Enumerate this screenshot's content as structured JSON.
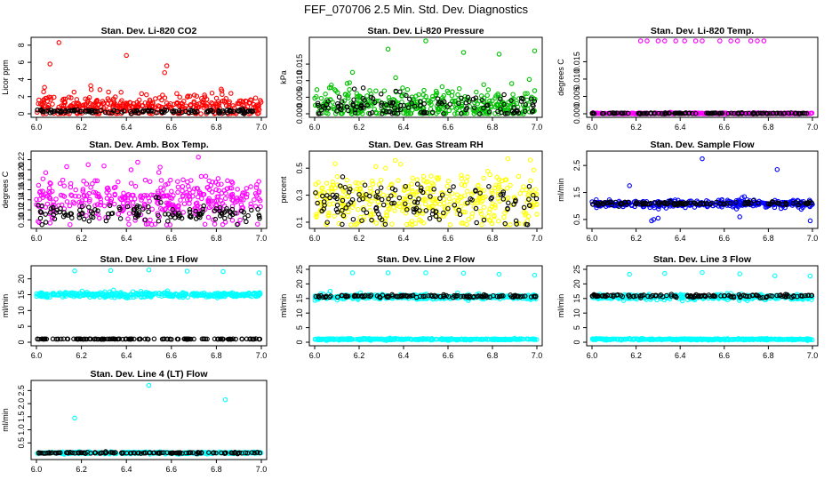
{
  "figure_title": "FEF_070706  2.5 Min. Std. Dev. Diagnostics",
  "colors": {
    "red": "#ff0000",
    "green": "#00c000",
    "magenta": "#ff00ff",
    "yellow": "#ffff00",
    "blue": "#0000ff",
    "cyan": "#00ffff",
    "black": "#000000"
  },
  "chart_data": [
    {
      "type": "scatter",
      "title": "Stan. Dev. Li-820 CO2",
      "ylabel": "Licor ppm",
      "xlim": [
        6.0,
        7.0
      ],
      "ylim": [
        0,
        8.5
      ],
      "xticks": [
        "6.0",
        "6.2",
        "6.4",
        "6.6",
        "6.8",
        "7.0"
      ],
      "yticks": [
        "0",
        "2",
        "4",
        "6",
        "8"
      ],
      "series": [
        {
          "name": "red",
          "color": "red",
          "baseline": 0.9,
          "spread": 0.9,
          "x": [
            6.1,
            6.06,
            6.4,
            6.58,
            6.57
          ],
          "y": [
            8.3,
            5.8,
            6.8,
            5.6,
            4.8
          ]
        },
        {
          "name": "black",
          "color": "black",
          "baseline": 0.3,
          "spread": 0.12,
          "x": [],
          "y": []
        }
      ]
    },
    {
      "type": "scatter",
      "title": "Stan. Dev. Li-820 Pressure",
      "ylabel": "kPa",
      "xlim": [
        6.0,
        7.0
      ],
      "ylim": [
        0,
        0.022
      ],
      "xticks": [
        "6.0",
        "6.2",
        "6.4",
        "6.6",
        "6.8",
        "7.0"
      ],
      "yticks": [
        "0.000",
        "0.005",
        "0.010",
        "0.015"
      ],
      "series": [
        {
          "name": "green",
          "color": "green",
          "baseline": 0.0025,
          "spread": 0.003,
          "x": [
            6.33,
            6.5,
            6.67,
            6.83,
            6.99,
            6.17
          ],
          "y": [
            0.0195,
            0.022,
            0.0185,
            0.018,
            0.019,
            0.0125
          ]
        },
        {
          "name": "black",
          "color": "black",
          "baseline": 0.0022,
          "spread": 0.0025,
          "x": [],
          "y": []
        }
      ]
    },
    {
      "type": "scatter",
      "title": "Stan. Dev. Li-820 Temp.",
      "ylabel": "degrees C",
      "xlim": [
        6.0,
        7.0
      ],
      "ylim": [
        0,
        0.021
      ],
      "xticks": [
        "6.0",
        "6.2",
        "6.4",
        "6.6",
        "6.8",
        "7.0"
      ],
      "yticks": [
        "0.000",
        "0.005",
        "0.010",
        "0.015"
      ],
      "series": [
        {
          "name": "magenta",
          "color": "magenta",
          "baseline": 0.0001,
          "spread": 0.0001,
          "x": [
            6.22,
            6.25,
            6.3,
            6.33,
            6.38,
            6.42,
            6.47,
            6.5,
            6.58,
            6.63,
            6.66,
            6.72,
            6.75,
            6.78
          ],
          "y": [
            0.021,
            0.021,
            0.021,
            0.021,
            0.021,
            0.021,
            0.021,
            0.021,
            0.021,
            0.021,
            0.021,
            0.021,
            0.021,
            0.021
          ]
        },
        {
          "name": "black",
          "color": "black",
          "baseline": 0.0001,
          "spread": 0.0001,
          "x": [],
          "y": []
        }
      ]
    },
    {
      "type": "scatter",
      "title": "Stan. Dev. Amb. Box Temp.",
      "ylabel": "degrees C",
      "xlim": [
        6.0,
        7.0
      ],
      "ylim": [
        0.09,
        0.23
      ],
      "xticks": [
        "6.0",
        "6.2",
        "6.4",
        "6.6",
        "6.8",
        "7.0"
      ],
      "yticks": [
        "0.10",
        "0.12",
        "0.14",
        "0.16",
        "0.18",
        "0.20",
        "0.22"
      ],
      "series": [
        {
          "name": "magenta",
          "color": "magenta",
          "baseline": 0.14,
          "spread": 0.028,
          "x": [
            6.45,
            6.72,
            6.23,
            6.55
          ],
          "y": [
            0.215,
            0.225,
            0.21,
            0.205
          ]
        },
        {
          "name": "black",
          "color": "black",
          "baseline": 0.112,
          "spread": 0.012,
          "x": [],
          "y": []
        }
      ]
    },
    {
      "type": "scatter",
      "title": "Stan. Dev. Gas Stream RH",
      "ylabel": "percent",
      "xlim": [
        6.0,
        7.0
      ],
      "ylim": [
        0.08,
        0.6
      ],
      "xticks": [
        "6.0",
        "6.2",
        "6.4",
        "6.6",
        "6.8",
        "7.0"
      ],
      "yticks": [
        "0.1",
        "0.3",
        "0.5"
      ],
      "series": [
        {
          "name": "yellow",
          "color": "yellow",
          "baseline": 0.25,
          "spread": 0.13,
          "x": [
            6.87,
            6.97
          ],
          "y": [
            0.57,
            0.56
          ]
        },
        {
          "name": "black",
          "color": "black",
          "baseline": 0.24,
          "spread": 0.1,
          "x": [],
          "y": []
        }
      ]
    },
    {
      "type": "scatter",
      "title": "Stan. Dev. Sample Flow",
      "ylabel": "ml/min",
      "xlim": [
        6.0,
        7.0
      ],
      "ylim": [
        0.3,
        2.9
      ],
      "xticks": [
        "6.0",
        "6.2",
        "6.4",
        "6.6",
        "6.8",
        "7.0"
      ],
      "yticks": [
        "0.5",
        "1.5",
        "2.5"
      ],
      "series": [
        {
          "name": "blue",
          "color": "blue",
          "baseline": 1.08,
          "spread": 0.08,
          "x": [
            6.5,
            6.84,
            6.17,
            6.99,
            6.27,
            6.28,
            6.3,
            6.67
          ],
          "y": [
            2.75,
            2.35,
            1.75,
            0.45,
            0.45,
            0.5,
            0.55,
            0.6
          ]
        },
        {
          "name": "black",
          "color": "black",
          "baseline": 1.1,
          "spread": 0.04,
          "x": [],
          "y": []
        }
      ]
    },
    {
      "type": "scatter",
      "title": "Stan. Dev. Line 1 Flow",
      "ylabel": "ml/min",
      "xlim": [
        6.0,
        7.0
      ],
      "ylim": [
        0,
        23
      ],
      "xticks": [
        "6.0",
        "6.2",
        "6.4",
        "6.6",
        "6.8",
        "7.0"
      ],
      "yticks": [
        "0",
        "5",
        "10",
        "15",
        "20"
      ],
      "series": [
        {
          "name": "cyan",
          "color": "cyan",
          "baseline": 15.0,
          "spread": 0.45,
          "x": [
            6.17,
            6.33,
            6.5,
            6.67,
            6.83,
            6.99
          ],
          "y": [
            22.5,
            22.6,
            22.8,
            22.4,
            22.3,
            21.9
          ]
        },
        {
          "name": "black",
          "color": "black",
          "baseline": 1.0,
          "spread": 0.05,
          "x": [],
          "y": []
        }
      ]
    },
    {
      "type": "scatter",
      "title": "Stan. Dev. Line 2 Flow",
      "ylabel": "ml/min",
      "xlim": [
        6.0,
        7.0
      ],
      "ylim": [
        0,
        25
      ],
      "xticks": [
        "6.0",
        "6.2",
        "6.4",
        "6.6",
        "6.8",
        "7.0"
      ],
      "yticks": [
        "0",
        "5",
        "10",
        "15",
        "20",
        "25"
      ],
      "series": [
        {
          "name": "cyan-high",
          "color": "cyan",
          "baseline": 15.5,
          "spread": 0.5,
          "x": [
            6.07,
            6.17,
            6.33,
            6.5,
            6.67,
            6.83,
            6.99
          ],
          "y": [
            17.5,
            23.8,
            23.8,
            23.8,
            23.7,
            23.3,
            23.0
          ]
        },
        {
          "name": "cyan-low",
          "color": "cyan",
          "baseline": 1.0,
          "spread": 0.15,
          "x": [],
          "y": []
        },
        {
          "name": "black",
          "color": "black",
          "baseline": 15.8,
          "spread": 0.3,
          "x": [],
          "y": []
        }
      ]
    },
    {
      "type": "scatter",
      "title": "Stan. Dev. Line 3 Flow",
      "ylabel": "ml/min",
      "xlim": [
        6.0,
        7.0
      ],
      "ylim": [
        0,
        25
      ],
      "xticks": [
        "6.0",
        "6.2",
        "6.4",
        "6.6",
        "6.8",
        "7.0"
      ],
      "yticks": [
        "0",
        "5",
        "10",
        "15",
        "20",
        "25"
      ],
      "series": [
        {
          "name": "cyan-high",
          "color": "cyan",
          "baseline": 15.5,
          "spread": 0.5,
          "x": [
            6.17,
            6.33,
            6.5,
            6.67,
            6.83,
            6.99
          ],
          "y": [
            23.3,
            23.6,
            23.9,
            23.4,
            22.8,
            22.7
          ]
        },
        {
          "name": "cyan-low",
          "color": "cyan",
          "baseline": 1.0,
          "spread": 0.15,
          "x": [],
          "y": []
        },
        {
          "name": "black",
          "color": "black",
          "baseline": 15.9,
          "spread": 0.3,
          "x": [],
          "y": []
        }
      ]
    },
    {
      "type": "scatter",
      "title": "Stan. Dev. Line 4 (LT) Flow",
      "ylabel": "ml/min",
      "xlim": [
        6.0,
        7.0
      ],
      "ylim": [
        0,
        2.75
      ],
      "xticks": [
        "6.0",
        "6.2",
        "6.4",
        "6.6",
        "6.8",
        "7.0"
      ],
      "yticks": [
        "0.5",
        "1.0",
        "1.5",
        "2.0",
        "2.5"
      ],
      "series": [
        {
          "name": "cyan",
          "color": "cyan",
          "baseline": 0.12,
          "spread": 0.02,
          "x": [
            6.17,
            6.5,
            6.84
          ],
          "y": [
            1.45,
            2.7,
            2.15
          ]
        },
        {
          "name": "black",
          "color": "black",
          "baseline": 0.12,
          "spread": 0.015,
          "x": [],
          "y": []
        }
      ]
    }
  ]
}
